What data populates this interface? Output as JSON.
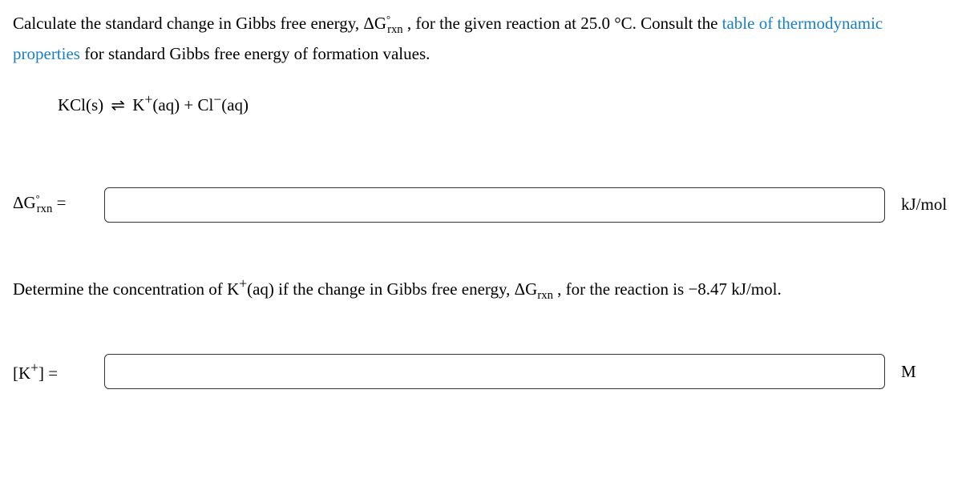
{
  "question1": {
    "text_before_link": "Calculate the standard change in Gibbs free energy, ",
    "delta_g_symbol": "ΔG",
    "rxn_sub": "rxn",
    "mid": " , for the given reaction at ",
    "temp": "25.0 °C",
    "after_temp": ". Consult the ",
    "link_text": "table of thermodynamic properties",
    "after_link": " for standard Gibbs free energy of formation values."
  },
  "equation": {
    "reactant": "KCl(s)",
    "arrow": "⇌",
    "product1_base": "K",
    "product1_charge": "+",
    "product1_state": "(aq)",
    "plus": " + ",
    "product2_base": "Cl",
    "product2_charge": "−",
    "product2_state": "(aq)"
  },
  "answer1": {
    "label_prefix": "ΔG",
    "label_sub": "rxn",
    "label_eq": " =",
    "unit": "kJ/mol"
  },
  "question2": {
    "before": "Determine the concentration of ",
    "species_base": "K",
    "species_charge": "+",
    "species_state": "(aq)",
    "mid": " if the change in Gibbs free energy, ",
    "dg": "ΔG",
    "dg_sub": "rxn",
    "after_dg": " , for the reaction is ",
    "value": "−8.47 kJ/mol",
    "period": "."
  },
  "answer2": {
    "label": "[K",
    "charge": "+",
    "close": "] =",
    "unit": "M"
  },
  "style": {
    "input_border_color": "#333",
    "link_color": "#1a7fc4",
    "font_size_body": 21
  }
}
